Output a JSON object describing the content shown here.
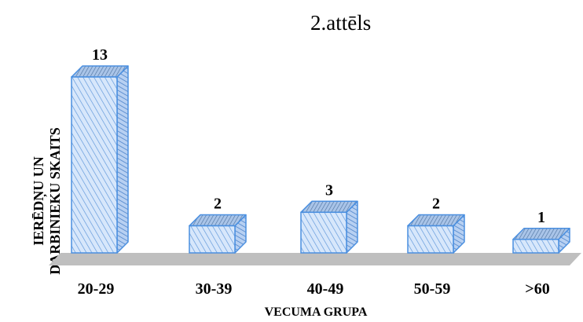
{
  "caption": "2.attēls",
  "chart_data": {
    "type": "bar",
    "title": "",
    "categories": [
      "20-29",
      "30-39",
      "40-49",
      "50-59",
      ">60"
    ],
    "values": [
      13,
      2,
      3,
      2,
      1
    ],
    "xlabel": "VECUMA GRUPA",
    "ylabel_lines": [
      "IERĒDŅU UN",
      "DARBINIEKU SKAITS"
    ],
    "ylim": [
      0,
      13
    ],
    "grid": false,
    "legend": "none",
    "bar_fill": "#d7e7fb",
    "bar_side": "#b7d0f2",
    "bar_stroke": "#4a8fe0",
    "floor_color": "#bfbfbf"
  }
}
